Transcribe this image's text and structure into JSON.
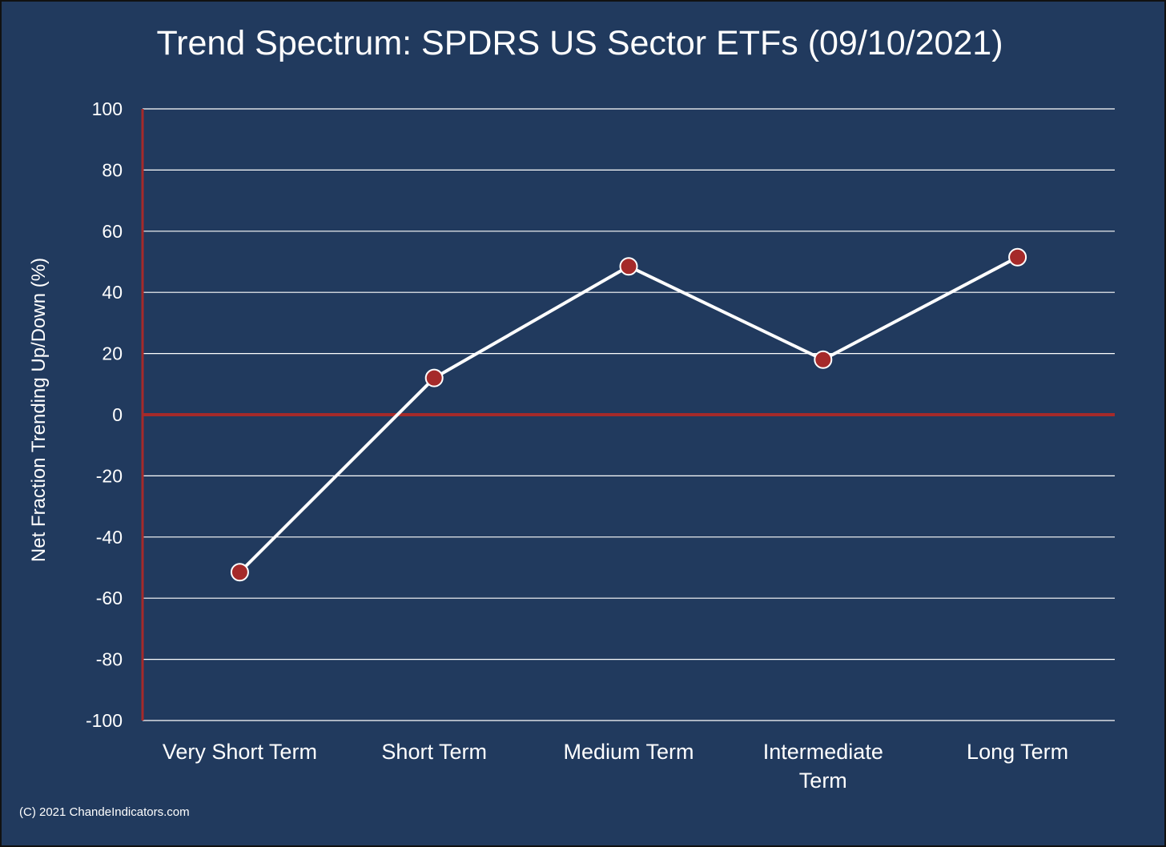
{
  "chart_data": {
    "type": "line",
    "title": "Trend Spectrum: SPDRS US Sector ETFs (09/10/2021)",
    "ylabel": "Net Fraction Trending Up/Down (%)",
    "xlabel": "",
    "categories": [
      "Very Short Term",
      "Short Term",
      "Medium Term",
      "Intermediate Term",
      "Long Term"
    ],
    "category_lines": [
      [
        "Very Short Term"
      ],
      [
        "Short Term"
      ],
      [
        "Medium Term"
      ],
      [
        "Intermediate",
        "Term"
      ],
      [
        "Long Term"
      ]
    ],
    "values": [
      -51.5,
      12,
      48.5,
      18,
      51.5
    ],
    "ylim": [
      -100,
      100
    ],
    "yticks": [
      100,
      80,
      60,
      40,
      20,
      0,
      -20,
      -40,
      -60,
      -80,
      -100
    ],
    "grid": true,
    "legend": "none",
    "colors": {
      "background": "#213a5e",
      "line": "#ffffff",
      "marker": "#a52a2a",
      "axis": "#a52a2a",
      "grid": "#ffffff"
    }
  },
  "footer": {
    "copyright": "(C) 2021 ChandeIndicators.com"
  }
}
